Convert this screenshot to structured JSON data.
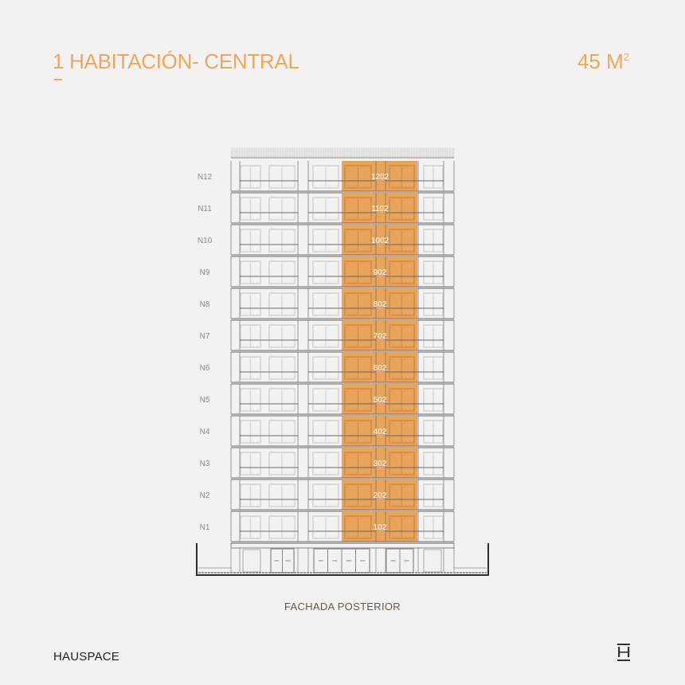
{
  "header": {
    "title": "1 HABITACIÓN- CENTRAL",
    "area_value": "45 M",
    "area_unit_sup": "2"
  },
  "caption": "FACHADA POSTERIOR",
  "brand": "HAUSPACE",
  "colors": {
    "accent": "#eba660",
    "highlight": "#e8a35c",
    "line": "#555555",
    "background": "#f4f2f0"
  },
  "floors": [
    {
      "level": "N12",
      "unit": "1202"
    },
    {
      "level": "N11",
      "unit": "1102"
    },
    {
      "level": "N10",
      "unit": "1002"
    },
    {
      "level": "N9",
      "unit": "902"
    },
    {
      "level": "N8",
      "unit": "802"
    },
    {
      "level": "N7",
      "unit": "702"
    },
    {
      "level": "N6",
      "unit": "602"
    },
    {
      "level": "N5",
      "unit": "502"
    },
    {
      "level": "N4",
      "unit": "402"
    },
    {
      "level": "N3",
      "unit": "302"
    },
    {
      "level": "N2",
      "unit": "202"
    },
    {
      "level": "N1",
      "unit": "102"
    }
  ],
  "logo_icon": "hauspace-h-logo-icon"
}
